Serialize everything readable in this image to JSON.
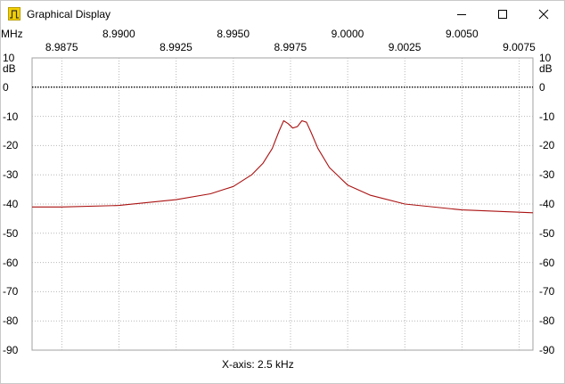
{
  "window": {
    "title": "Graphical Display",
    "icons": {
      "app": "rf-pulse-icon",
      "minimize": "minimize-icon",
      "maximize": "maximize-icon",
      "close": "close-icon"
    }
  },
  "chart_data": {
    "type": "line",
    "x_unit": "MHz",
    "y_unit": "dB",
    "x_ticks_row1": [
      "8.9900",
      "8.9950",
      "9.0000",
      "9.0050"
    ],
    "x_ticks_row2": [
      "8.9875",
      "8.9925",
      "8.9975",
      "9.0025",
      "9.0075"
    ],
    "y_ticks": [
      "10",
      "0",
      "-10",
      "-20",
      "-30",
      "-40",
      "-50",
      "-60",
      "-70",
      "-80",
      "-90"
    ],
    "xlim": [
      8.9862,
      9.0081
    ],
    "ylim": [
      -90,
      10
    ],
    "grid": "dotted",
    "reference_line": 0,
    "xaxis_note": "X-axis: 2.5 kHz",
    "line_color": "#aa1111",
    "series": [
      {
        "x": [
          8.9862,
          8.9875,
          8.99,
          8.9925,
          8.994,
          8.995,
          8.9958,
          8.9963,
          8.9967,
          8.997,
          8.9972,
          8.9974,
          8.9976,
          8.9978,
          8.998,
          8.9982,
          8.9984,
          8.9987,
          8.9992,
          9.0,
          9.001,
          9.0025,
          9.005,
          9.0081
        ],
        "y": [
          -41.0,
          -41.0,
          -40.5,
          -38.5,
          -36.5,
          -34.0,
          -30.0,
          -26.0,
          -21.0,
          -15.0,
          -11.5,
          -12.5,
          -14.0,
          -13.5,
          -11.5,
          -12.0,
          -15.5,
          -21.0,
          -27.5,
          -33.5,
          -37.0,
          -40.0,
          -42.0,
          -43.0
        ]
      }
    ]
  }
}
